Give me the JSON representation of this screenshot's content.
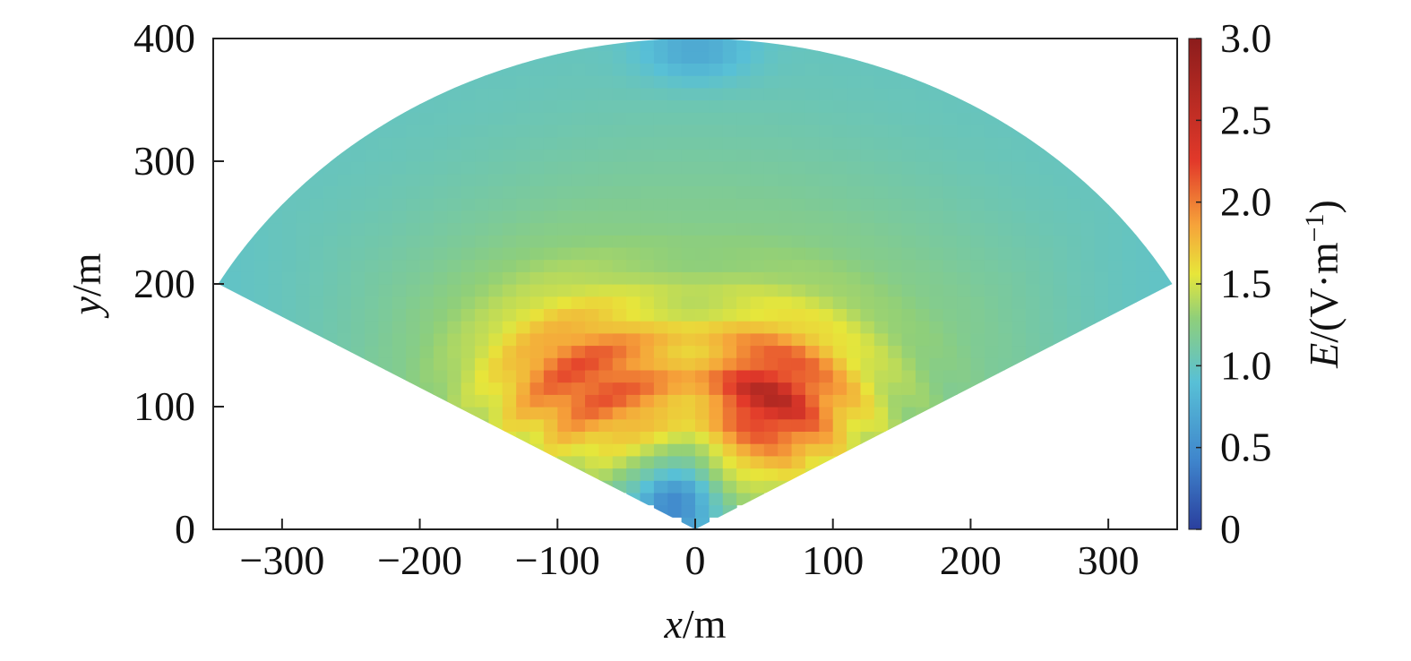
{
  "chart_data": {
    "type": "heatmap",
    "title": "",
    "xlabel": {
      "var": "x",
      "unit": "/m"
    },
    "ylabel": {
      "var": "y",
      "unit": "/m"
    },
    "colorbar_label": {
      "var": "E",
      "unit_prefix": "/(V·m",
      "unit_sup": "−1",
      "unit_suffix": ")"
    },
    "xlim": [
      -350,
      350
    ],
    "ylim": [
      0,
      400
    ],
    "clim": [
      0,
      3.0
    ],
    "xticks": [
      -300,
      -200,
      -100,
      0,
      100,
      200,
      300
    ],
    "xtick_labels": [
      "−300",
      "−200",
      "−100",
      "0",
      "100",
      "200",
      "300"
    ],
    "yticks": [
      0,
      100,
      200,
      300,
      400
    ],
    "ytick_labels": [
      "0",
      "100",
      "200",
      "300",
      "400"
    ],
    "cticks": [
      0,
      0.5,
      1.0,
      1.5,
      2.0,
      2.5,
      3.0
    ],
    "ctick_labels": [
      "0",
      "0.5",
      "1.0",
      "1.5",
      "2.0",
      "2.5",
      "3.0"
    ],
    "colormap": [
      "#2a3f9e",
      "#3f85cc",
      "#58c0d6",
      "#8fcf7a",
      "#e7e63a",
      "#f6a33a",
      "#e2392a",
      "#8c1c1c"
    ],
    "grid": false,
    "region": {
      "shape": "fan",
      "apex": [
        0,
        0
      ],
      "radius": 400,
      "half_angle_deg": 60
    },
    "hotspots": [
      {
        "x": 55,
        "y": 105,
        "value": 2.5
      },
      {
        "x": -80,
        "y": 120,
        "value": 2.2
      },
      {
        "x": -20,
        "y": 25,
        "value": 0.4
      },
      {
        "x": 0,
        "y": 390,
        "value": 0.7
      }
    ]
  }
}
